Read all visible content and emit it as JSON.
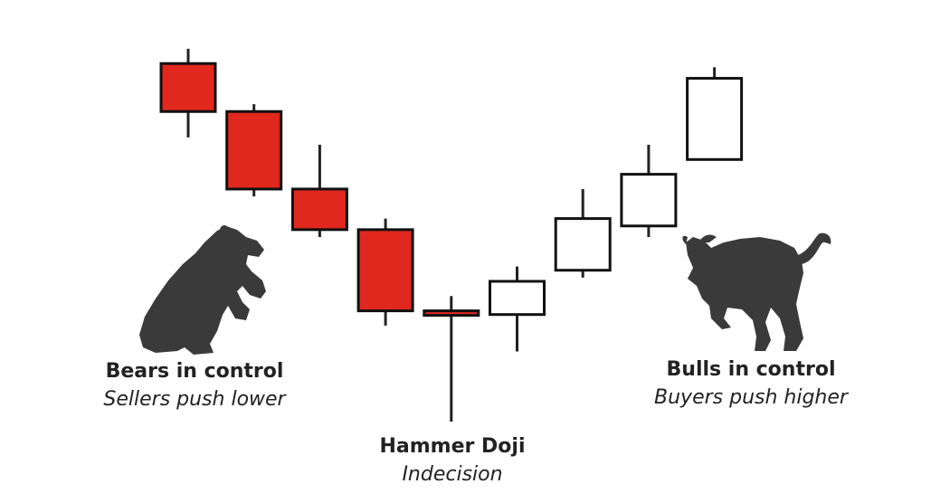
{
  "chart_data": {
    "type": "candlestick",
    "colors": {
      "bearish": "#e0281e",
      "bullish": "#ffffff",
      "outline": "#111111",
      "wick": "#222222",
      "silhouette": "#3a3a3a"
    },
    "candles": [
      {
        "open": 9.7,
        "close": 8.4,
        "high": 10.1,
        "low": 7.7
      },
      {
        "open": 8.4,
        "close": 6.3,
        "high": 8.6,
        "low": 6.1
      },
      {
        "open": 6.3,
        "close": 5.2,
        "high": 7.5,
        "low": 5.0
      },
      {
        "open": 5.2,
        "close": 3.0,
        "high": 5.5,
        "low": 2.6
      },
      {
        "open": 3.0,
        "close": 2.9,
        "high": 3.4,
        "low": 0.0
      },
      {
        "open": 2.9,
        "close": 3.8,
        "high": 4.2,
        "low": 1.9
      },
      {
        "open": 4.1,
        "close": 5.5,
        "high": 6.3,
        "low": 3.9
      },
      {
        "open": 5.3,
        "close": 6.7,
        "high": 7.5,
        "low": 5.0
      },
      {
        "open": 7.1,
        "close": 9.3,
        "high": 9.6,
        "low": 7.1
      }
    ],
    "annotations": [
      {
        "id": "bears",
        "title": "Bears in control",
        "subtitle": "Sellers push lower",
        "icon": "bear-icon"
      },
      {
        "id": "doji",
        "title": "Hammer Doji",
        "subtitle": "Indecision"
      },
      {
        "id": "bulls",
        "title": "Bulls in control",
        "subtitle": "Buyers push higher",
        "icon": "bull-icon"
      }
    ]
  }
}
